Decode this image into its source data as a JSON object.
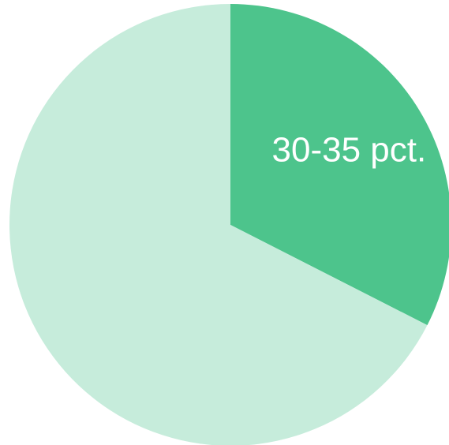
{
  "chart_data": {
    "type": "pie",
    "start_angle_deg": 0,
    "direction": "clockwise",
    "slices": [
      {
        "label": "30-35 pct.",
        "value": 32.5,
        "color": "#4dc48c",
        "show_label": true
      },
      {
        "label": "",
        "value": 67.5,
        "color": "#c6ecdb",
        "show_label": false
      }
    ]
  }
}
